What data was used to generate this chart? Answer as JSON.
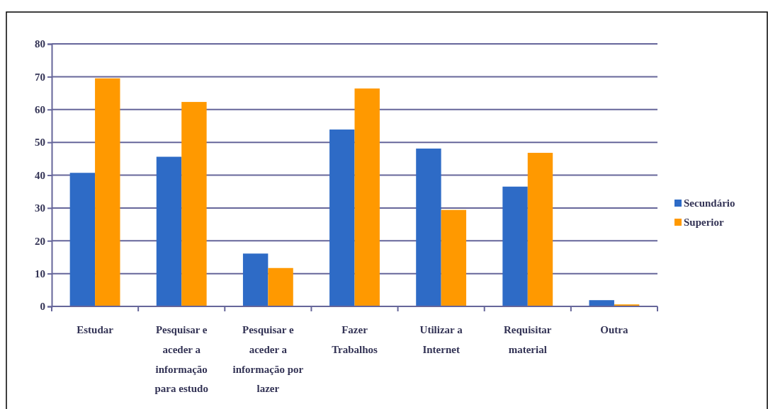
{
  "chart_data": {
    "type": "bar",
    "categories": [
      "Estudar",
      "Pesquisar e aceder a informação para estudo",
      "Pesquisar e aceder a informação por lazer",
      "Fazer Trabalhos",
      "Utilizar a Internet",
      "Requisitar material",
      "Outra"
    ],
    "series": [
      {
        "name": "Secundário",
        "color": "#2e6bc6",
        "values": [
          40.7,
          45.6,
          16.1,
          53.9,
          48.1,
          36.5,
          1.9
        ]
      },
      {
        "name": "Superior",
        "color": "#ff9900",
        "values": [
          69.5,
          62.3,
          11.7,
          66.4,
          29.4,
          46.8,
          0.6
        ]
      }
    ],
    "ylim": [
      0,
      80
    ],
    "yticks": [
      0,
      10,
      20,
      30,
      40,
      50,
      60,
      70,
      80
    ],
    "grid": "y",
    "legend": "right"
  }
}
